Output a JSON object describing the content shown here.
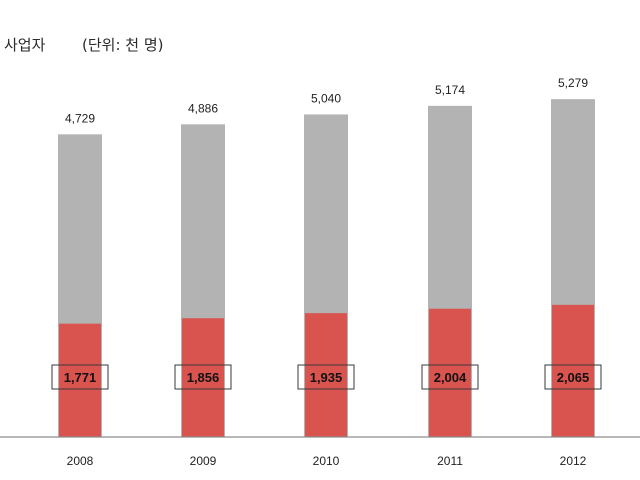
{
  "chart_data": {
    "type": "bar",
    "title": "사업자",
    "unit_label": "(단위: 천 명)",
    "categories": [
      "2008",
      "2009",
      "2010",
      "2011",
      "2012"
    ],
    "series": [
      {
        "values": [
          4729,
          4886,
          5040,
          5174,
          5279
        ],
        "value_labels": [
          "4,729",
          "4,886",
          "5,040",
          "5,174",
          "5,279"
        ],
        "color": "#b3b3b3"
      },
      {
        "values": [
          1771,
          1856,
          1935,
          2004,
          2065
        ],
        "value_labels": [
          "1,771",
          "1,856",
          "1,935",
          "2,004",
          "2,065"
        ],
        "color": "#d9534f"
      }
    ],
    "ylim": [
      0,
      6000
    ],
    "grid": false,
    "legend": "none"
  }
}
